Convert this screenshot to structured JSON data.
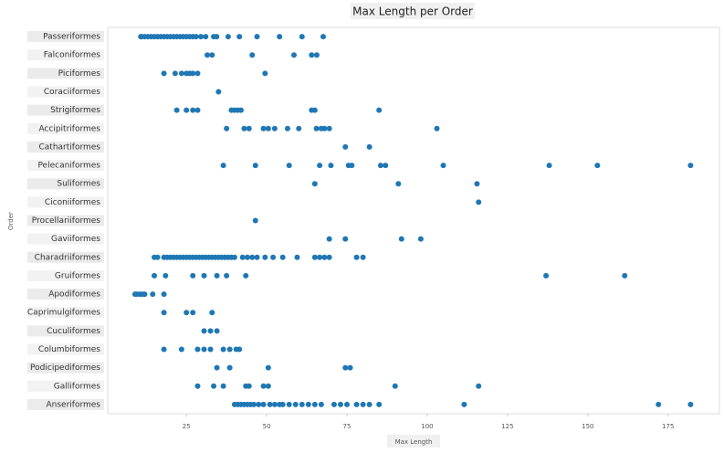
{
  "chart_data": {
    "type": "scatter",
    "title": "Max Length per Order",
    "x_label": "Max Length",
    "y_label": "Order",
    "color": "#1f77b4",
    "categories": [
      "Passeriformes",
      "Falconiformes",
      "Piciformes",
      "Coraciiformes",
      "Strigiformes",
      "Accipitriformes",
      "Cathartiformes",
      "Pelecaniformes",
      "Suliformes",
      "Ciconiiformes",
      "Procellariiformes",
      "Gaviiformes",
      "Charadriiformes",
      "Gruiformes",
      "Apodiformes",
      "Caprimulgiformes",
      "Cuculiformes",
      "Columbiformes",
      "Podicipediformes",
      "Galliformes",
      "Anseriformes"
    ],
    "values": [
      [
        10.8,
        11,
        12,
        13,
        14,
        15,
        16,
        17,
        18,
        19,
        20,
        21,
        22,
        23,
        24,
        25,
        26,
        27,
        28,
        29.5,
        31,
        33.5,
        34.4,
        38,
        41.5,
        47,
        54,
        61,
        67.6
      ],
      [
        31.5,
        33,
        45.5,
        58.5,
        64,
        65.6
      ],
      [
        18,
        21.5,
        23.5,
        25,
        26,
        27,
        28.5,
        49.5
      ],
      [
        35
      ],
      [
        22,
        25,
        27,
        28.5,
        39,
        40,
        41,
        42,
        64,
        65,
        85
      ],
      [
        37.5,
        43,
        44.5,
        49,
        50.5,
        52.5,
        56.5,
        60,
        65.5,
        67,
        68,
        69.5,
        103
      ],
      [
        74.5,
        82
      ],
      [
        36.5,
        46.5,
        57,
        66.5,
        70,
        75.5,
        76.5,
        85.5,
        87,
        105,
        138,
        153,
        182
      ],
      [
        65,
        91,
        115.5
      ],
      [
        116
      ],
      [
        46.5
      ],
      [
        69.5,
        74.5,
        92,
        98
      ],
      [
        15,
        16,
        18,
        19,
        20,
        21,
        22,
        23,
        24,
        25,
        26,
        27,
        28,
        29,
        30,
        31,
        32,
        33,
        34,
        35,
        36,
        37,
        38,
        39,
        40,
        42.5,
        44,
        45.5,
        47,
        49.5,
        52,
        55,
        59.5,
        65,
        66.5,
        68,
        69.5,
        78,
        80
      ],
      [
        15,
        18.5,
        27,
        30.5,
        34.5,
        37.5,
        43.5,
        137,
        161.5
      ],
      [
        9,
        9.5,
        10.5,
        11.3,
        12,
        14.5,
        18
      ],
      [
        18,
        25,
        27,
        33
      ],
      [
        30.5,
        32.5,
        34.5
      ],
      [
        18,
        23.5,
        28.5,
        30.5,
        32.5,
        36.5,
        38.5,
        40.5,
        41.5
      ],
      [
        34.5,
        38.5,
        50.5,
        74.5,
        76
      ],
      [
        28.5,
        33.5,
        36.5,
        43.5,
        44.5,
        49,
        50.5,
        90,
        116
      ],
      [
        40,
        41,
        42,
        43,
        44,
        45,
        46,
        47.5,
        49,
        51,
        52.5,
        54,
        55,
        57,
        59,
        61,
        63,
        65,
        67,
        71,
        73,
        75,
        78,
        80,
        82,
        85,
        111.5,
        172,
        182
      ]
    ],
    "xlim": [
      0.5,
      191
    ],
    "xticks": [
      25,
      50,
      75,
      100,
      125,
      150,
      175
    ]
  }
}
